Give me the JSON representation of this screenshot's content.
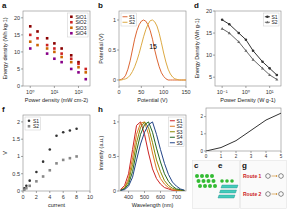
{
  "chart_data": [
    {
      "type": "scatter",
      "title": "a",
      "x_label": "Power density (mW cm-2)",
      "y_label": "Energy density (Wh kg-1)",
      "log": "x",
      "xlim": [
        0.5,
        300
      ],
      "ylim": [
        0,
        22
      ],
      "xticks": [
        {
          "value": 1,
          "label": "10⁰"
        },
        {
          "value": 10,
          "label": "10¹"
        },
        {
          "value": 100,
          "label": "10²"
        }
      ],
      "yticks": [
        0,
        5,
        10,
        15,
        20
      ],
      "legend": "upper right",
      "series": [
        {
          "name": "SiO1",
          "color": "#8B0000",
          "marker": "square",
          "x": [
            1,
            2,
            5,
            10,
            20,
            50,
            100
          ],
          "values": [
            17.5,
            16,
            14,
            12.5,
            11,
            9,
            7
          ]
        },
        {
          "name": "SiO2",
          "color": "#cc2222",
          "marker": "square",
          "x": [
            1,
            2,
            5,
            10,
            20,
            50,
            100,
            200
          ],
          "values": [
            15,
            14,
            12,
            11,
            9.5,
            8,
            6.5,
            5
          ]
        },
        {
          "name": "SiO3",
          "color": "#cc6600",
          "marker": "square",
          "x": [
            1,
            2,
            5,
            10,
            20,
            50,
            100,
            200
          ],
          "values": [
            13,
            12,
            11,
            10,
            8.5,
            7,
            5.5,
            4
          ]
        },
        {
          "name": "SiO4",
          "color": "#880088",
          "marker": "square",
          "x": [
            1,
            5,
            10,
            20,
            50,
            100,
            200
          ],
          "values": [
            11,
            9.5,
            8,
            7,
            5,
            4,
            2
          ]
        }
      ]
    },
    {
      "type": "diagram",
      "title": "c",
      "annotations": [
        "e"
      ]
    },
    {
      "type": "line",
      "title": "b",
      "x_label": "Potential (V)",
      "y_label": "Potential (V)",
      "x": [
        0,
        5,
        10,
        15,
        20,
        25,
        30,
        35,
        40,
        45,
        50,
        55,
        60,
        65,
        70,
        75,
        80,
        85,
        90,
        95,
        100,
        105,
        110,
        115,
        120,
        125,
        130,
        135,
        140,
        145,
        150
      ],
      "xlim": [
        0,
        150
      ],
      "ylim": [
        -0.1,
        1.15
      ],
      "xticks": [
        0,
        50,
        100,
        150
      ],
      "yticks": [
        0,
        0.5,
        1
      ],
      "legend": "upper left",
      "annotations": [
        "15"
      ],
      "series": [
        {
          "name": "S1",
          "color": "#dd6633",
          "values": [
            0,
            0.01,
            0.03,
            0.08,
            0.18,
            0.32,
            0.5,
            0.68,
            0.82,
            0.92,
            0.98,
            1.0,
            0.98,
            0.92,
            0.82,
            0.68,
            0.5,
            0.35,
            0.22,
            0.12,
            0.06,
            0.02,
            0.0,
            0,
            0,
            0,
            0,
            0,
            0,
            0,
            0
          ]
        },
        {
          "name": "S2",
          "color": "#ddaa44",
          "values": [
            0,
            0,
            0.01,
            0.02,
            0.04,
            0.08,
            0.14,
            0.22,
            0.32,
            0.44,
            0.58,
            0.72,
            0.84,
            0.93,
            0.99,
            1.0,
            0.97,
            0.9,
            0.78,
            0.62,
            0.45,
            0.3,
            0.18,
            0.1,
            0.05,
            0.02,
            0.01,
            0,
            0,
            0,
            0
          ]
        }
      ]
    },
    {
      "type": "line",
      "title": "d",
      "x_label": "Power Density (W g-1)",
      "y_label": "Energy Density (Wh g-1)",
      "x": [
        0.1,
        0.2,
        0.5,
        1,
        2,
        5,
        10,
        20
      ],
      "log": "x",
      "xlim": [
        0.05,
        30
      ],
      "ylim": [
        3,
        20
      ],
      "xticks": [
        {
          "value": 0.1,
          "label": "10⁻¹"
        },
        {
          "value": 1,
          "label": "10⁰"
        },
        {
          "value": 10,
          "label": "10¹"
        }
      ],
      "yticks": [
        5,
        10,
        15,
        20
      ],
      "legend": "upper right",
      "series": [
        {
          "name": "S1",
          "color": "#333333",
          "marker": "circle",
          "values": [
            18,
            17,
            15,
            13.5,
            11,
            8.5,
            7,
            5.5
          ]
        },
        {
          "name": "S2",
          "color": "#666666",
          "marker": "triangle",
          "values": [
            16,
            15,
            13,
            11,
            9,
            7,
            5.5,
            4.5
          ]
        }
      ]
    },
    {
      "type": "scatter",
      "title": "f",
      "x_label": "current",
      "y_label": "V",
      "xlim": [
        0,
        10
      ],
      "ylim": [
        0,
        2.2
      ],
      "xticks": [
        0,
        2,
        4,
        6,
        8,
        10
      ],
      "yticks": [
        0,
        0.5,
        1,
        1.5,
        2
      ],
      "legend": "upper left",
      "series": [
        {
          "name": "S1",
          "color": "#333333",
          "marker": "circle",
          "x": [
            0.1,
            0.2,
            0.5,
            1,
            2,
            3,
            4,
            5,
            6,
            7,
            8
          ],
          "values": [
            0.05,
            0.08,
            0.15,
            0.3,
            0.55,
            0.85,
            1.2,
            1.6,
            1.7,
            1.75,
            1.8
          ]
        },
        {
          "name": "S2",
          "color": "#888888",
          "marker": "square",
          "x": [
            0.1,
            0.2,
            0.5,
            1,
            2,
            3,
            4,
            5,
            6,
            7,
            8
          ],
          "values": [
            0.02,
            0.04,
            0.08,
            0.15,
            0.28,
            0.42,
            0.6,
            0.8,
            0.9,
            0.95,
            1.0
          ]
        }
      ]
    },
    {
      "type": "line",
      "x": [
        0,
        1,
        2,
        3,
        4,
        5
      ],
      "xlim": [
        0,
        5
      ],
      "ylim": [
        0,
        2.5
      ],
      "xticks": [
        0,
        1,
        2,
        3,
        4,
        5
      ],
      "yticks": [
        0,
        1,
        2
      ],
      "series": [
        {
          "color": "#333333",
          "values": [
            0,
            0.2,
            0.6,
            1.2,
            1.8,
            2.2
          ]
        }
      ]
    },
    {
      "type": "diagram",
      "title": "g",
      "color": "#cc2222",
      "annotations": [
        "Route 1",
        "Route 2"
      ]
    },
    {
      "type": "line",
      "title": "h",
      "x_label": "Wavelength (nm)",
      "y_label": "Intensity (a.u.)",
      "x": [
        350,
        375,
        400,
        425,
        450,
        475,
        500,
        525,
        550,
        575,
        600,
        625,
        650,
        675,
        700,
        725,
        750
      ],
      "xlim": [
        340,
        760
      ],
      "ylim": [
        0,
        1.1
      ],
      "xticks": [
        400,
        500,
        600,
        700
      ],
      "yticks": [
        0,
        0.5,
        1
      ],
      "legend": "upper right",
      "series": [
        {
          "name": "S1",
          "color": "#cc2222",
          "values": [
            0.02,
            0.08,
            0.25,
            0.6,
            0.95,
            1.0,
            0.82,
            0.55,
            0.32,
            0.18,
            0.1,
            0.05,
            0.03,
            0.01,
            0.01,
            0,
            0
          ]
        },
        {
          "name": "S2",
          "color": "#dd7722",
          "values": [
            0.01,
            0.05,
            0.18,
            0.48,
            0.82,
            0.98,
            1.0,
            0.82,
            0.55,
            0.32,
            0.18,
            0.1,
            0.05,
            0.02,
            0.01,
            0,
            0
          ]
        },
        {
          "name": "S3",
          "color": "#888800",
          "values": [
            0.01,
            0.04,
            0.14,
            0.38,
            0.7,
            0.92,
            1.0,
            0.92,
            0.7,
            0.45,
            0.28,
            0.15,
            0.08,
            0.04,
            0.02,
            0.01,
            0
          ]
        },
        {
          "name": "S4",
          "color": "#226622",
          "values": [
            0.01,
            0.03,
            0.1,
            0.28,
            0.58,
            0.82,
            0.96,
            1.0,
            0.85,
            0.62,
            0.42,
            0.25,
            0.14,
            0.07,
            0.03,
            0.02,
            0.01
          ]
        },
        {
          "name": "S5",
          "color": "#224488",
          "values": [
            0.01,
            0.02,
            0.07,
            0.2,
            0.45,
            0.68,
            0.85,
            0.96,
            1.0,
            0.82,
            0.6,
            0.4,
            0.24,
            0.13,
            0.07,
            0.03,
            0.01
          ]
        }
      ]
    }
  ]
}
